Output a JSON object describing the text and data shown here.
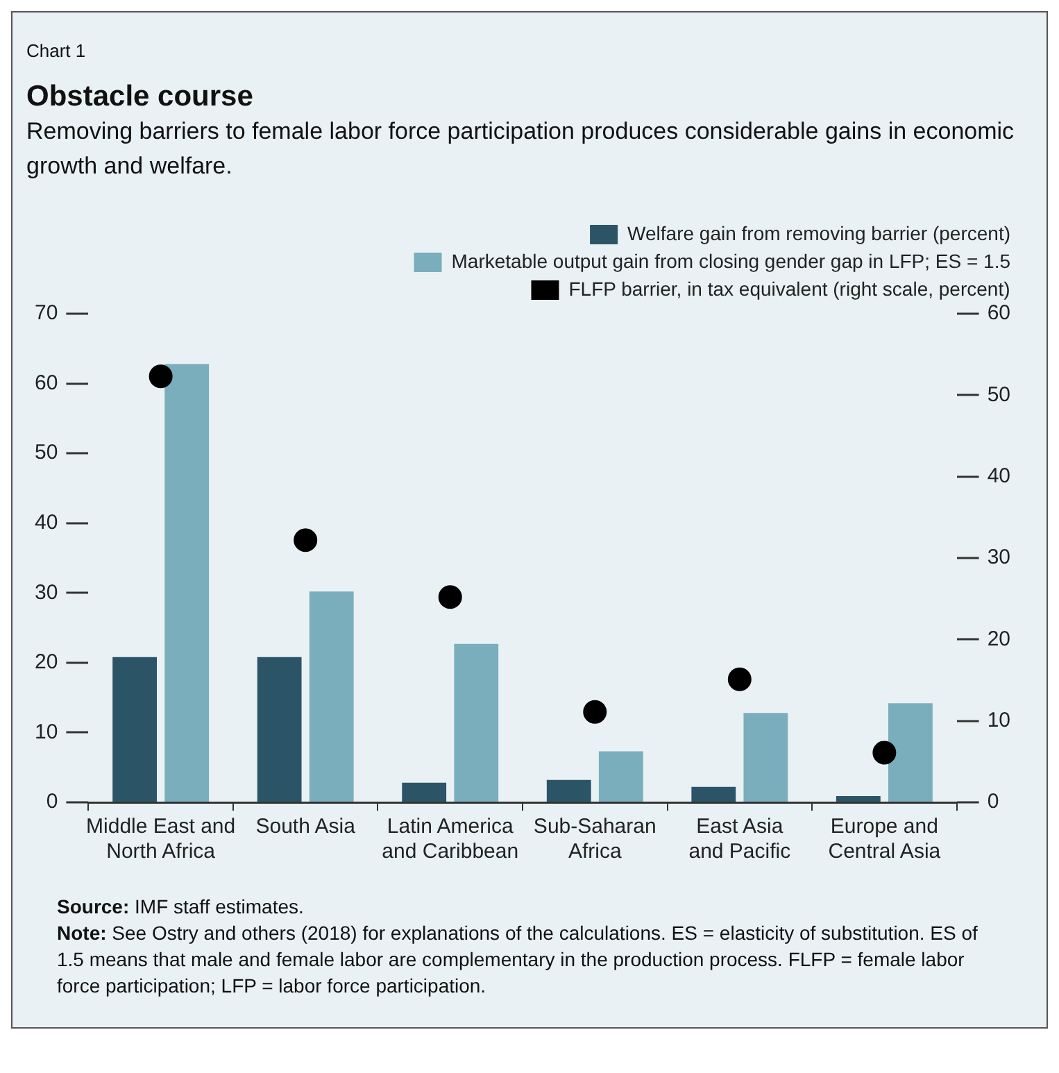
{
  "chart_data": {
    "type": "bar",
    "title": "Obstacle course",
    "subtitle": "Removing barriers to female labor force participation produces considerable gains in economic growth and welfare.",
    "categories": [
      "Middle East and North Africa",
      "South Asia",
      "Latin America and Caribbean",
      "Sub-Saharan Africa",
      "East Asia and Pacific",
      "Europe and Central Asia"
    ],
    "series": [
      {
        "name": "Welfare gain from removing barrier (percent)",
        "color": "#2b5566",
        "values": [
          20.8,
          20.8,
          2.8,
          3.2,
          2.2,
          0.9
        ]
      },
      {
        "name": "Marketable output gain from closing gender gap in LFP; ES = 1.5",
        "color": "#7aaebd",
        "values": [
          62.8,
          30.2,
          22.7,
          7.3,
          12.8,
          14.2
        ]
      },
      {
        "name": "FLFP barrier, in tax equivalent (right scale, percent)",
        "color": "#000000",
        "type": "scatter",
        "axis": "y2",
        "values": [
          52.3,
          32.2,
          25.2,
          11.1,
          15.1,
          6.1
        ]
      }
    ],
    "ylim": [
      0,
      70
    ],
    "yticks": [
      0,
      10,
      20,
      30,
      40,
      50,
      60,
      70
    ],
    "y2lim": [
      0,
      60
    ],
    "y2ticks": [
      0,
      10,
      20,
      30,
      40,
      50,
      60
    ],
    "grid": false,
    "legend": "top right",
    "marker": "circle",
    "annotations": [
      "Chart 1",
      "Source: IMF staff estimates.",
      "Note: See Ostry and others (2018) for explanations of the calculations. ES = elasticity of substitution. ES of 1.5 means that male and female labor are complementary in the production process. FLFP = female labor force participation; LFP = labor force participation."
    ]
  }
}
